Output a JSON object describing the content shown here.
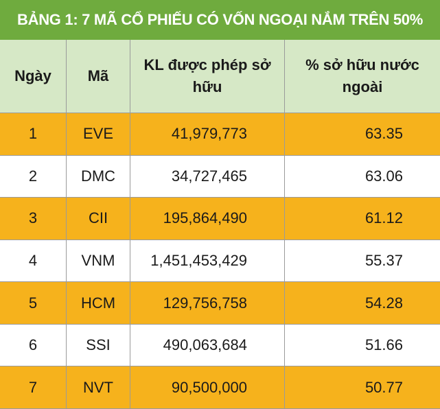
{
  "title": "BẢNG 1: 7 MÃ CỔ PHIẾU CÓ VỐN NGOẠI NẮM TRÊN 50%",
  "table": {
    "header": [
      "Ngày",
      "Mã",
      "KL được phép sở hữu",
      "% sở hữu nước ngoài"
    ],
    "rows": [
      [
        "1",
        "EVE",
        "41,979,773",
        "63.35"
      ],
      [
        "2",
        "DMC",
        "34,727,465",
        "63.06"
      ],
      [
        "3",
        "CII",
        "195,864,490",
        "61.12"
      ],
      [
        "4",
        "VNM",
        "1,451,453,429",
        "55.37"
      ],
      [
        "5",
        "HCM",
        "129,756,758",
        "54.28"
      ],
      [
        "6",
        "SSI",
        "490,063,684",
        "51.66"
      ],
      [
        "7",
        "NVT",
        "90,500,000",
        "50.77"
      ]
    ]
  }
}
